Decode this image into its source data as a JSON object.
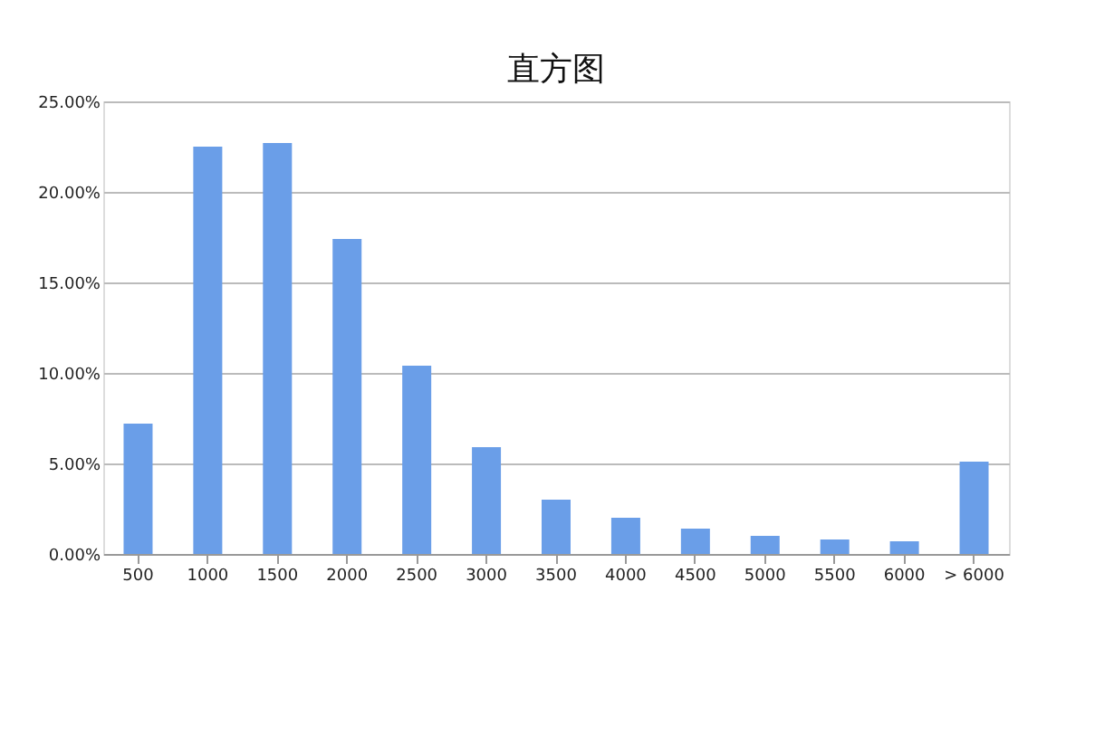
{
  "chart_data": {
    "type": "bar",
    "title": "直方图",
    "categories": [
      "500",
      "1000",
      "1500",
      "2000",
      "2500",
      "3000",
      "3500",
      "4000",
      "4500",
      "5000",
      "5500",
      "6000",
      "> 6000"
    ],
    "values": [
      7.2,
      22.5,
      22.7,
      17.4,
      10.4,
      5.9,
      3.0,
      2.0,
      1.4,
      1.0,
      0.8,
      0.7,
      5.1
    ],
    "color": "#6a9ee8",
    "ylim": [
      0,
      25
    ],
    "yticks": [
      {
        "value": 0,
        "label": "0.00%"
      },
      {
        "value": 5,
        "label": "5.00%"
      },
      {
        "value": 10,
        "label": "10.00%"
      },
      {
        "value": 15,
        "label": "15.00%"
      },
      {
        "value": 20,
        "label": "20.00%"
      },
      {
        "value": 25,
        "label": "25.00%"
      }
    ],
    "grid": "y"
  }
}
